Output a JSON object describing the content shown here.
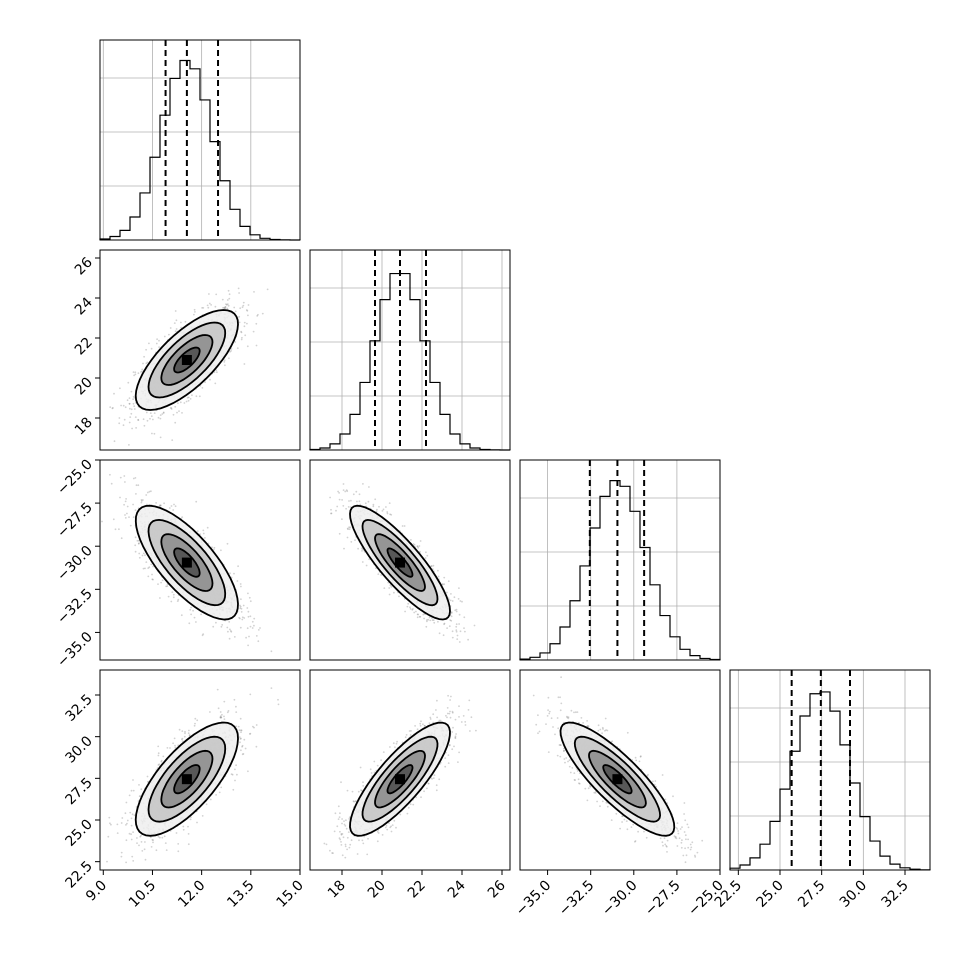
{
  "chart_data": {
    "type": "corner",
    "title": "",
    "grid": true,
    "colors": {
      "points": "#7f7f7f",
      "line": "#000000",
      "grid": "#b0b0b0"
    },
    "parameters": [
      {
        "mean": 11.55,
        "sigma": 0.78,
        "range": [
          8.9,
          15.0
        ],
        "ticks": [
          9.0,
          10.5,
          12.0,
          13.5,
          15.0
        ],
        "tick_labels": [
          "9.0",
          "10.5",
          "12.0",
          "13.5",
          "15.0"
        ],
        "quantiles": [
          10.9,
          11.55,
          12.5
        ]
      },
      {
        "mean": 20.9,
        "sigma": 1.25,
        "range": [
          16.4,
          26.4
        ],
        "ticks": [
          18,
          20,
          22,
          24,
          26
        ],
        "tick_labels": [
          "18",
          "20",
          "22",
          "24",
          "26"
        ],
        "quantiles": [
          19.65,
          20.9,
          22.2
        ]
      },
      {
        "mean": -30.95,
        "sigma": 1.65,
        "range": [
          -36.6,
          -25.0
        ],
        "ticks": [
          -35.0,
          -32.5,
          -30.0,
          -27.5,
          -25.0
        ],
        "tick_labels": [
          "−35.0",
          "−32.5",
          "−30.0",
          "−27.5",
          "−25.0"
        ],
        "quantiles": [
          -32.55,
          -30.95,
          -29.4
        ]
      },
      {
        "mean": 27.45,
        "sigma": 1.7,
        "range": [
          22.0,
          34.0
        ],
        "ticks": [
          22.5,
          25.0,
          27.5,
          30.0,
          32.5
        ],
        "tick_labels": [
          "22.5",
          "25.0",
          "27.5",
          "30.0",
          "32.5"
        ],
        "quantiles": [
          25.7,
          27.45,
          29.2
        ]
      }
    ],
    "correlations": [
      {
        "pair": [
          1,
          0
        ],
        "rho": 0.72
      },
      {
        "pair": [
          2,
          0
        ],
        "rho": -0.74
      },
      {
        "pair": [
          2,
          1
        ],
        "rho": -0.85
      },
      {
        "pair": [
          3,
          0
        ],
        "rho": 0.72
      },
      {
        "pair": [
          3,
          1
        ],
        "rho": 0.82
      },
      {
        "pair": [
          3,
          2
        ],
        "rho": -0.84
      }
    ],
    "contour_levels_sigma": [
      0.5,
      1.0,
      1.5,
      2.0
    ]
  }
}
